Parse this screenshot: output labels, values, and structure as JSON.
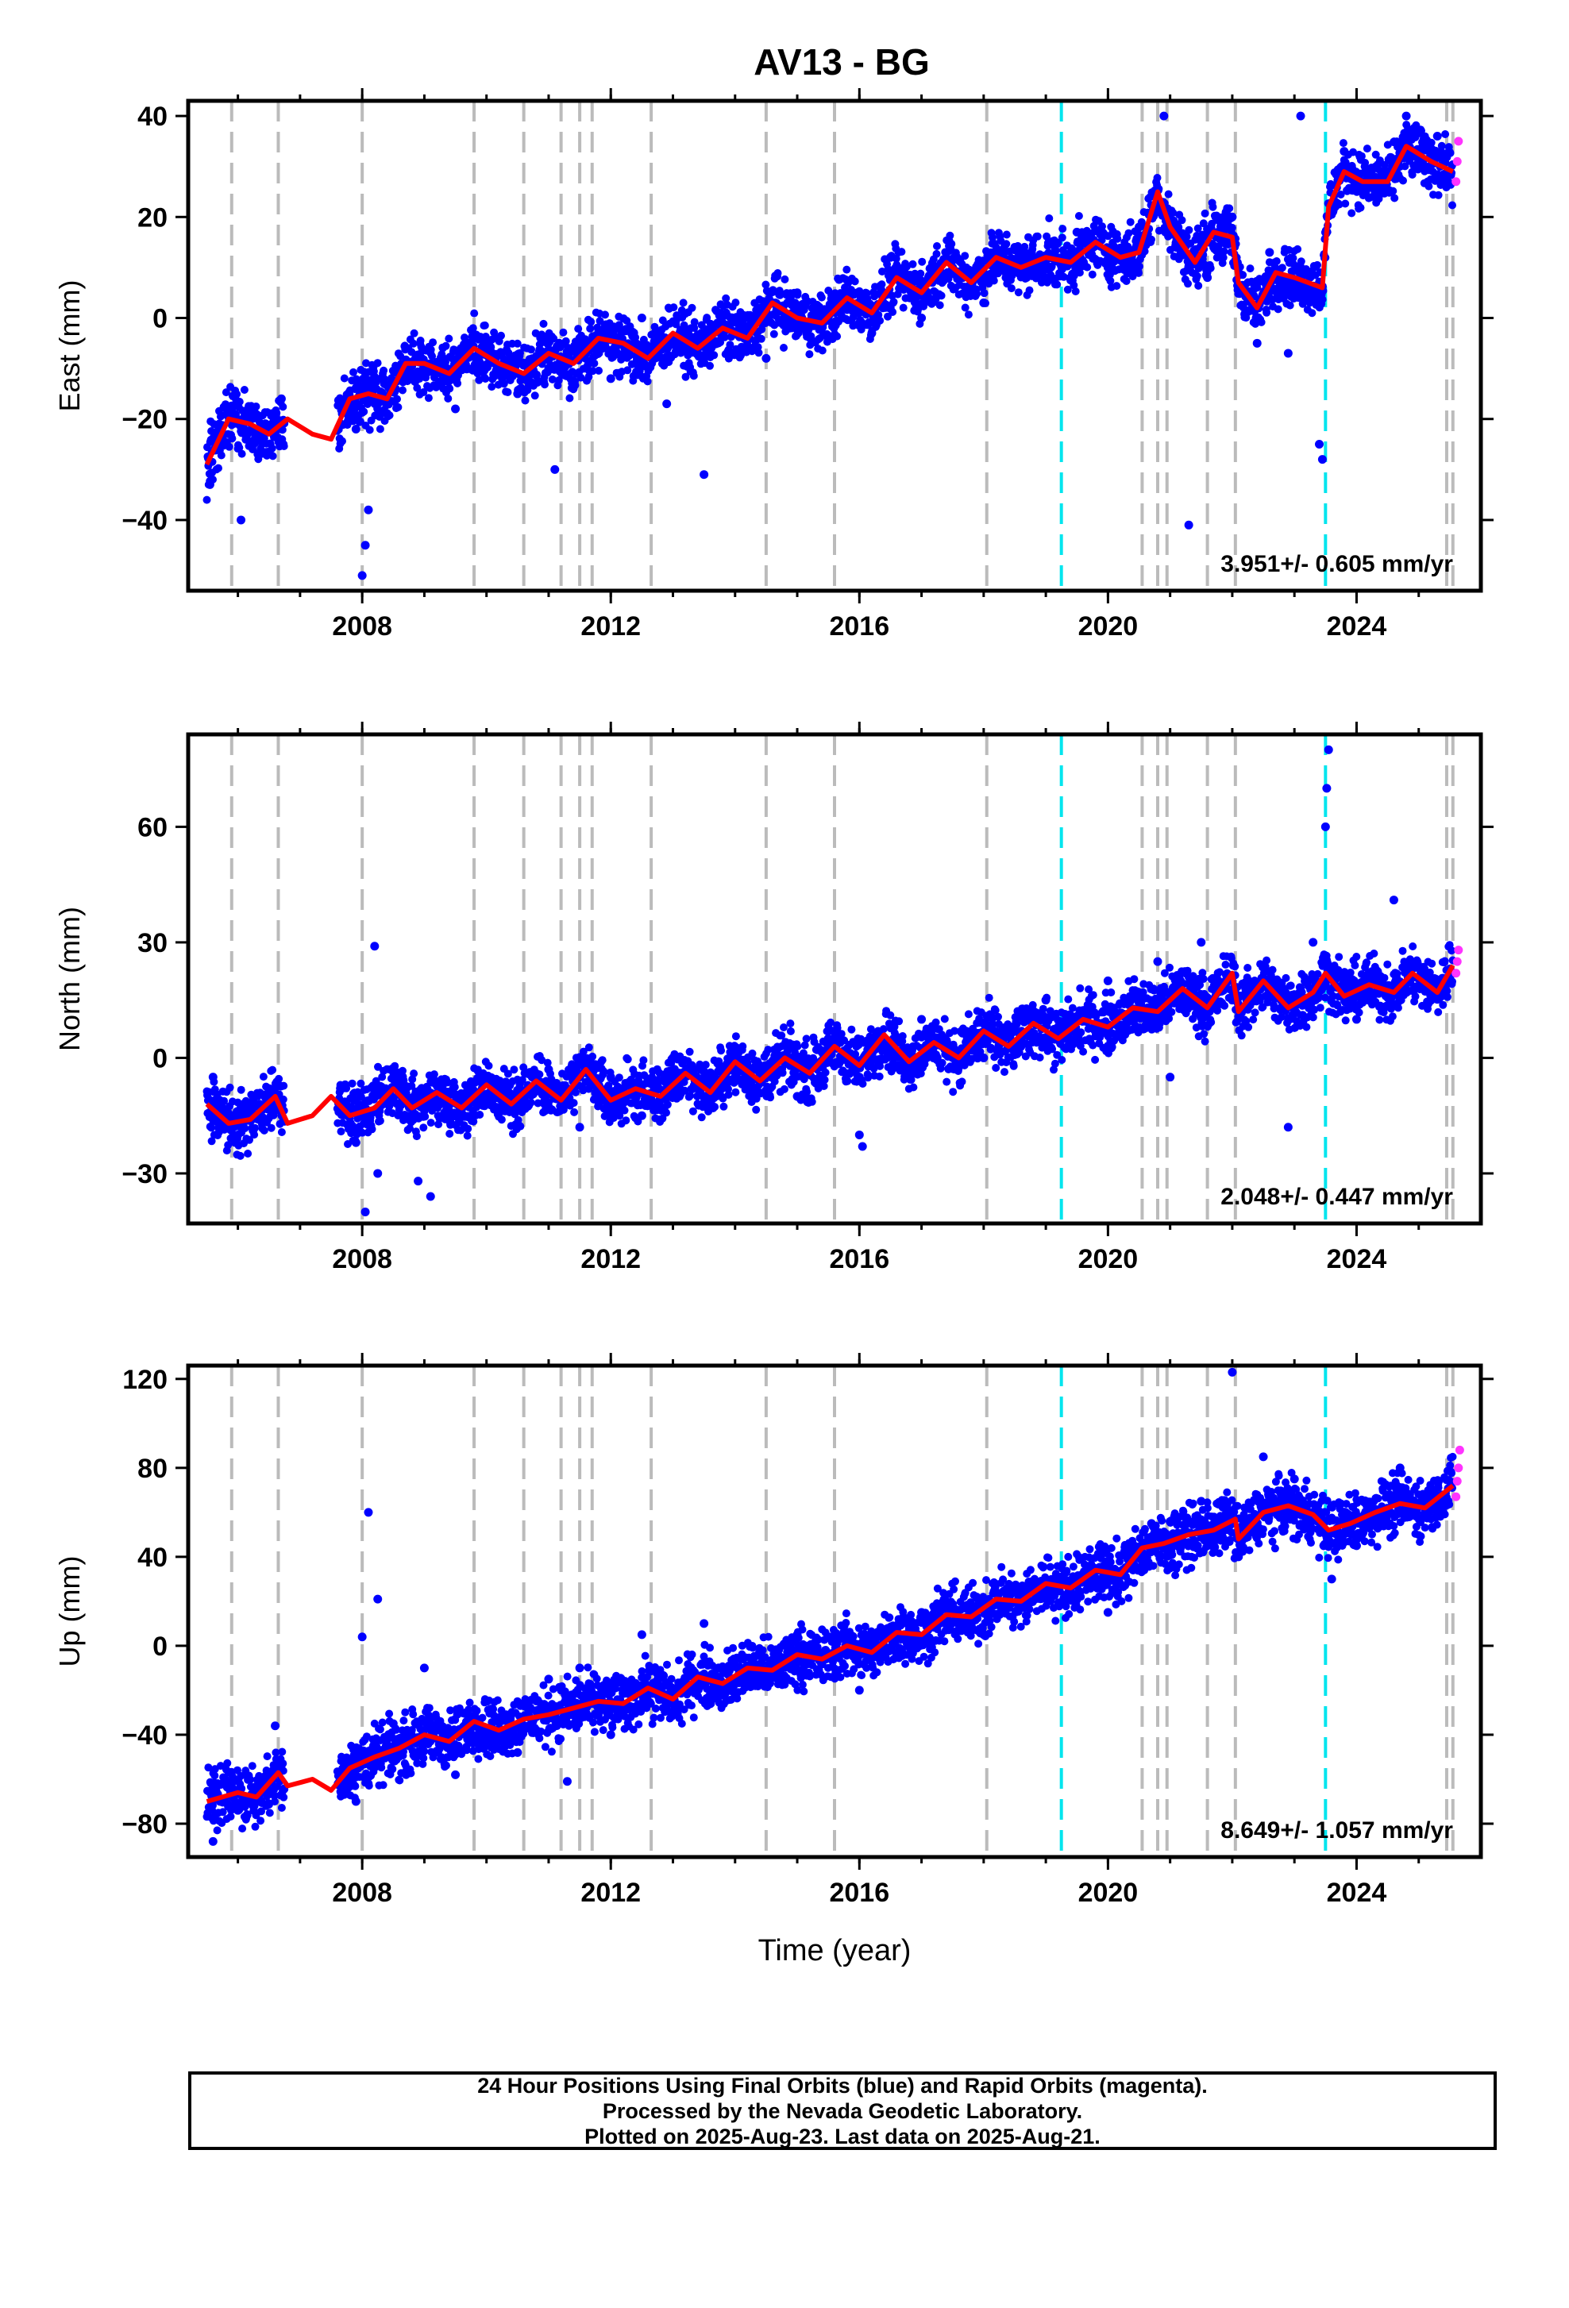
{
  "title": "AV13 - BG",
  "colors": {
    "final_points": "#0000ff",
    "rapid_points": "#ff33ff",
    "model_line": "#ff0000",
    "gray_events": "#bbbbbb",
    "cyan_events": "#00e5ee"
  },
  "events": {
    "gray": [
      2005.9,
      2006.65,
      2008.0,
      2009.8,
      2010.6,
      2011.2,
      2011.5,
      2011.7,
      2012.65,
      2014.5,
      2015.6,
      2018.05,
      2020.55,
      2020.8,
      2020.95,
      2021.6,
      2022.05,
      2025.45,
      2025.55
    ],
    "cyan": [
      2019.25,
      2023.5
    ]
  },
  "chart_data": [
    {
      "type": "scatter",
      "name": "east",
      "ylabel": "East (mm)",
      "xlim": [
        2005.2,
        2026.0
      ],
      "ylim": [
        -54,
        43
      ],
      "xticks": [
        2008,
        2012,
        2016,
        2020,
        2024
      ],
      "xtick_labels": [
        "2008",
        "2012",
        "2016",
        "2020",
        "2024"
      ],
      "yticks": [
        -40,
        -20,
        0,
        20,
        40
      ],
      "ytick_labels": [
        "−40",
        "−20",
        "0",
        "20",
        "40"
      ],
      "rate_label": "3.951+/- 0.605 mm/yr",
      "model_line": {
        "x": [
          2005.5,
          2005.85,
          2006.2,
          2006.5,
          2006.8,
          2007.2,
          2007.5,
          2007.8,
          2008.1,
          2008.4,
          2008.7,
          2009.0,
          2009.4,
          2009.8,
          2010.2,
          2010.6,
          2011.0,
          2011.4,
          2011.8,
          2012.2,
          2012.6,
          2013.0,
          2013.4,
          2013.8,
          2014.2,
          2014.6,
          2015.0,
          2015.4,
          2015.8,
          2016.2,
          2016.6,
          2017.0,
          2017.4,
          2017.8,
          2018.2,
          2018.6,
          2019.0,
          2019.4,
          2019.8,
          2020.2,
          2020.5,
          2020.8,
          2021.0,
          2021.4,
          2021.7,
          2022.0,
          2022.1,
          2022.4,
          2022.7,
          2023.0,
          2023.45,
          2023.55,
          2023.8,
          2024.1,
          2024.5,
          2024.8,
          2025.2,
          2025.55
        ],
        "y": [
          -29,
          -20,
          -21,
          -23,
          -20,
          -23,
          -24,
          -16,
          -15,
          -16,
          -9,
          -9,
          -11,
          -6,
          -9,
          -11,
          -7,
          -9,
          -4,
          -5,
          -8,
          -3,
          -6,
          -2,
          -4,
          3,
          0,
          -1,
          4,
          1,
          8,
          5,
          11,
          7,
          12,
          10,
          12,
          11,
          15,
          12,
          13,
          25,
          18,
          11,
          17,
          16,
          7,
          2,
          9,
          8,
          6,
          22,
          29,
          27,
          27,
          34,
          31,
          29
        ]
      },
      "scatter_final": {
        "x": [
          2005.55,
          2005.7,
          2005.9,
          2006.05,
          2006.25,
          2006.45,
          2006.7,
          2007.9,
          2008.0,
          2008.05,
          2008.1,
          2008.3,
          2008.9,
          2009.5,
          2010.0,
          2010.5,
          2011.0,
          2011.1,
          2011.5,
          2012.0,
          2012.5,
          2012.9,
          2013.3,
          2013.5,
          2014.0,
          2014.5,
          2015.0,
          2015.5,
          2016.0,
          2016.2,
          2016.5,
          2017.0,
          2017.5,
          2018.0,
          2018.5,
          2019.0,
          2019.5,
          2020.0,
          2020.5,
          2020.9,
          2021.1,
          2021.3,
          2021.6,
          2022.0,
          2022.4,
          2022.6,
          2022.9,
          2023.1,
          2023.4,
          2023.45,
          2023.8,
          2024.3,
          2024.8,
          2025.0,
          2025.3
        ],
        "y": [
          -33,
          -21,
          -18,
          -40,
          -25,
          -21,
          -16,
          -22,
          -51,
          -45,
          -38,
          -12,
          -8,
          -18,
          -5,
          -15,
          -10,
          -30,
          -4,
          -12,
          0,
          -17,
          -5,
          -31,
          0,
          -8,
          5,
          0,
          5,
          -3,
          12,
          0,
          10,
          3,
          14,
          8,
          17,
          10,
          18,
          40,
          14,
          -41,
          8,
          20,
          -5,
          13,
          -7,
          40,
          -25,
          -28,
          33,
          25,
          40,
          31,
          36
        ]
      },
      "scatter_rapid": {
        "x": [
          2025.6,
          2025.62,
          2025.64
        ],
        "y": [
          27,
          31,
          35
        ]
      }
    },
    {
      "type": "scatter",
      "name": "north",
      "ylabel": "North (mm)",
      "xlim": [
        2005.2,
        2026.0
      ],
      "ylim": [
        -43,
        84
      ],
      "xticks": [
        2008,
        2012,
        2016,
        2020,
        2024
      ],
      "xtick_labels": [
        "2008",
        "2012",
        "2016",
        "2020",
        "2024"
      ],
      "yticks": [
        -30,
        0,
        30,
        60
      ],
      "ytick_labels": [
        "−30",
        "0",
        "30",
        "60"
      ],
      "rate_label": "2.048+/- 0.447 mm/yr",
      "model_line": {
        "x": [
          2005.5,
          2005.85,
          2006.2,
          2006.6,
          2006.8,
          2007.2,
          2007.5,
          2007.8,
          2008.2,
          2008.5,
          2008.8,
          2009.2,
          2009.6,
          2010.0,
          2010.4,
          2010.8,
          2011.2,
          2011.6,
          2012.0,
          2012.4,
          2012.8,
          2013.2,
          2013.6,
          2014.0,
          2014.4,
          2014.8,
          2015.2,
          2015.6,
          2016.0,
          2016.4,
          2016.8,
          2017.2,
          2017.6,
          2018.0,
          2018.4,
          2018.8,
          2019.2,
          2019.6,
          2020.0,
          2020.4,
          2020.8,
          2021.2,
          2021.6,
          2022.0,
          2022.1,
          2022.5,
          2022.9,
          2023.3,
          2023.5,
          2023.8,
          2024.2,
          2024.6,
          2024.9,
          2025.3,
          2025.55
        ],
        "y": [
          -12,
          -17,
          -16,
          -10,
          -17,
          -15,
          -10,
          -15,
          -13,
          -8,
          -13,
          -9,
          -13,
          -7,
          -12,
          -6,
          -11,
          -3,
          -11,
          -8,
          -10,
          -4,
          -9,
          -1,
          -6,
          0,
          -4,
          3,
          -2,
          6,
          -1,
          4,
          0,
          7,
          3,
          9,
          5,
          10,
          8,
          13,
          12,
          18,
          13,
          22,
          12,
          20,
          13,
          17,
          22,
          16,
          19,
          17,
          22,
          17,
          24
        ]
      },
      "scatter_final": {
        "x": [
          2005.6,
          2006.0,
          2006.5,
          2007.9,
          2008.05,
          2008.2,
          2008.25,
          2008.9,
          2009.1,
          2009.5,
          2010.0,
          2010.5,
          2011.0,
          2011.5,
          2012.0,
          2012.5,
          2013.0,
          2013.5,
          2014.0,
          2015.0,
          2015.5,
          2016.0,
          2016.05,
          2017.0,
          2018.0,
          2019.0,
          2020.0,
          2020.8,
          2021.0,
          2021.5,
          2022.0,
          2022.9,
          2023.3,
          2023.5,
          2023.52,
          2023.55,
          2024.0,
          2024.6,
          2025.3
        ],
        "y": [
          -5,
          -20,
          -8,
          -22,
          -40,
          29,
          -30,
          -32,
          -36,
          -15,
          -5,
          -17,
          -3,
          -18,
          -5,
          -15,
          0,
          -12,
          -5,
          -10,
          5,
          -20,
          -23,
          10,
          0,
          15,
          20,
          25,
          -5,
          30,
          15,
          -18,
          30,
          60,
          70,
          80,
          10,
          41,
          20
        ]
      },
      "scatter_rapid": {
        "x": [
          2025.6,
          2025.62,
          2025.64
        ],
        "y": [
          22,
          25,
          28
        ]
      }
    },
    {
      "type": "scatter",
      "name": "up",
      "ylabel": "Up (mm)",
      "xlim": [
        2005.2,
        2026.0
      ],
      "ylim": [
        -95,
        126
      ],
      "xticks": [
        2008,
        2012,
        2016,
        2020,
        2024
      ],
      "xtick_labels": [
        "2008",
        "2012",
        "2016",
        "2020",
        "2024"
      ],
      "yticks": [
        -80,
        -40,
        0,
        40,
        80,
        120
      ],
      "ytick_labels": [
        "−80",
        "−40",
        "0",
        "40",
        "80",
        "120"
      ],
      "xlabel": "Time (year)",
      "rate_label": "8.649+/- 1.057 mm/yr",
      "model_line": {
        "x": [
          2005.5,
          2006.0,
          2006.3,
          2006.65,
          2006.8,
          2007.2,
          2007.5,
          2007.8,
          2008.2,
          2008.6,
          2009.0,
          2009.4,
          2009.8,
          2010.2,
          2010.6,
          2011.0,
          2011.4,
          2011.8,
          2012.2,
          2012.6,
          2013.0,
          2013.4,
          2013.8,
          2014.2,
          2014.6,
          2015.0,
          2015.4,
          2015.8,
          2016.2,
          2016.6,
          2017.0,
          2017.4,
          2017.8,
          2018.2,
          2018.6,
          2019.0,
          2019.4,
          2019.8,
          2020.2,
          2020.55,
          2020.9,
          2021.3,
          2021.7,
          2022.05,
          2022.1,
          2022.5,
          2022.9,
          2023.3,
          2023.55,
          2023.9,
          2024.3,
          2024.7,
          2025.1,
          2025.55
        ],
        "y": [
          -70,
          -66,
          -68,
          -57,
          -63,
          -60,
          -65,
          -55,
          -50,
          -46,
          -40,
          -43,
          -34,
          -38,
          -33,
          -31,
          -28,
          -25,
          -26,
          -19,
          -24,
          -14,
          -17,
          -10,
          -11,
          -4,
          -6,
          0,
          -3,
          6,
          5,
          14,
          13,
          21,
          20,
          28,
          26,
          34,
          32,
          44,
          46,
          50,
          52,
          57,
          48,
          60,
          63,
          59,
          52,
          55,
          60,
          64,
          62,
          72
        ]
      },
      "scatter_final": {
        "x": [
          2005.6,
          2006.0,
          2006.6,
          2007.9,
          2008.0,
          2008.1,
          2008.25,
          2008.5,
          2009.0,
          2009.5,
          2010.0,
          2010.5,
          2011.0,
          2011.3,
          2011.5,
          2012.0,
          2012.5,
          2013.0,
          2013.5,
          2014.0,
          2015.0,
          2016.0,
          2017.0,
          2018.0,
          2019.0,
          2020.0,
          2020.7,
          2021.0,
          2021.5,
          2022.0,
          2022.1,
          2022.5,
          2023.0,
          2023.6,
          2024.0,
          2024.7,
          2025.3
        ],
        "y": [
          -88,
          -74,
          -36,
          -70,
          4,
          60,
          21,
          -35,
          -10,
          -58,
          -25,
          -48,
          -15,
          -61,
          -10,
          -40,
          5,
          -30,
          10,
          -15,
          5,
          -20,
          15,
          5,
          25,
          15,
          55,
          35,
          65,
          123,
          40,
          85,
          75,
          30,
          45,
          80,
          60
        ]
      },
      "scatter_rapid": {
        "x": [
          2025.6,
          2025.62,
          2025.64,
          2025.66
        ],
        "y": [
          67,
          74,
          80,
          88
        ]
      }
    }
  ],
  "caption": {
    "line1": "24 Hour Positions Using Final Orbits (blue) and Rapid Orbits (magenta).",
    "line2": "Processed by the Nevada Geodetic Laboratory.",
    "line3": "Plotted on 2025-Aug-23. Last data on 2025-Aug-21."
  }
}
